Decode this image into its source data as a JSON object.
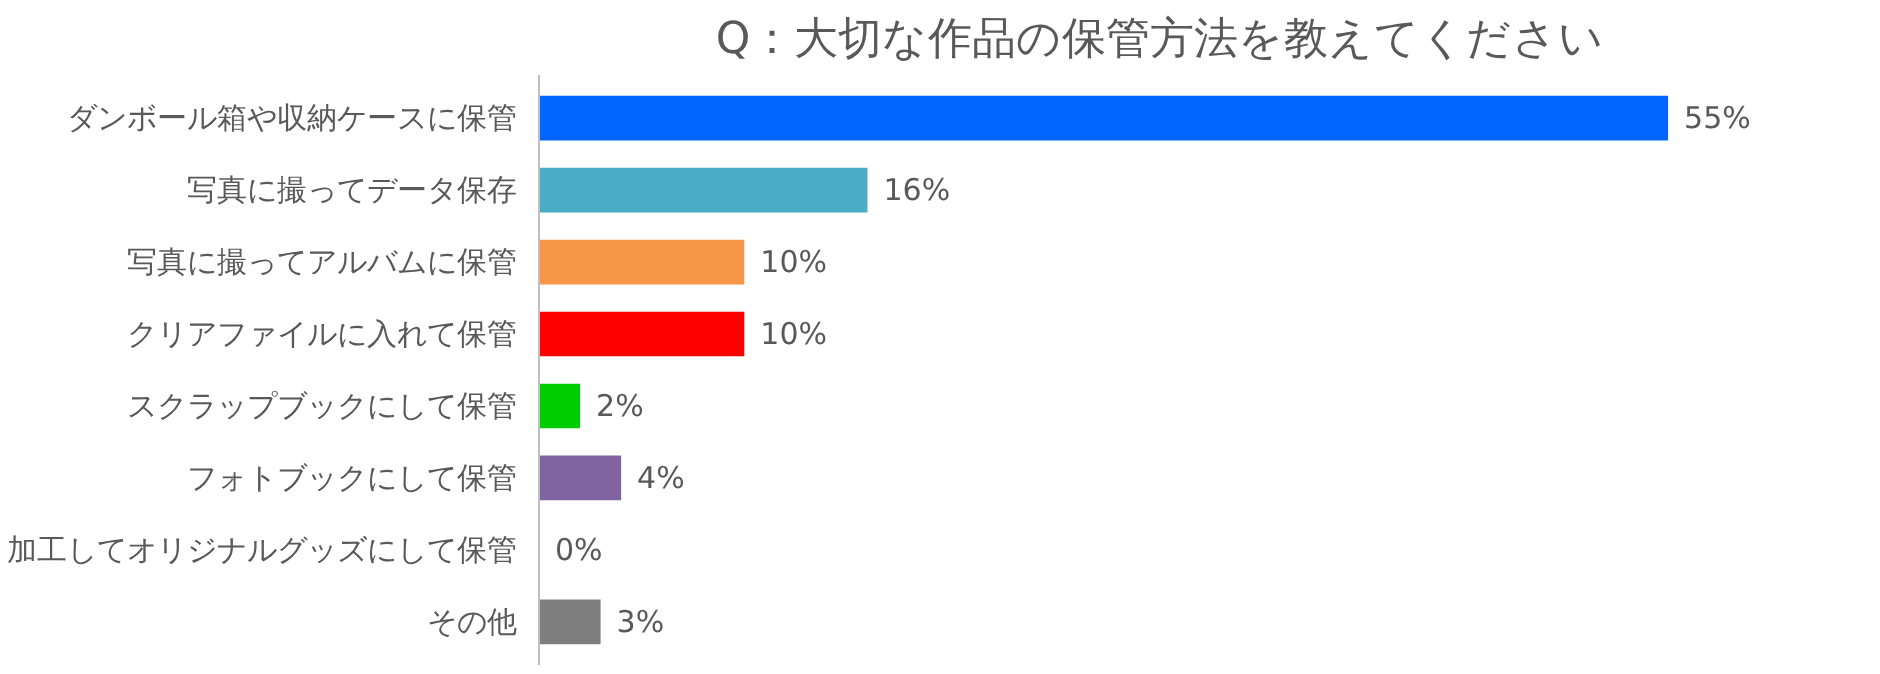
{
  "chart_data": {
    "type": "bar",
    "orientation": "horizontal",
    "title": "Q：大切な作品の保管方法を教えてください",
    "categories": [
      "ダンボール箱や収納ケースに保管",
      "写真に撮ってデータ保存",
      "写真に撮ってアルバムに保管",
      "クリアファイルに入れて保管",
      "スクラップブックにして保管",
      "フォトブックにして保管",
      "加工してオリジナルグッズにして保管",
      "その他"
    ],
    "values": [
      55,
      16,
      10,
      10,
      2,
      4,
      0,
      3
    ],
    "colors": [
      "#0066ff",
      "#4bacc6",
      "#f79646",
      "#ff0000",
      "#00cc00",
      "#8064a2",
      "#bfbfbf",
      "#7f7f7f"
    ],
    "value_labels": [
      "55%",
      "16%",
      "10%",
      "10%",
      "2%",
      "4%",
      "0%",
      "3%"
    ],
    "grid": false
  }
}
